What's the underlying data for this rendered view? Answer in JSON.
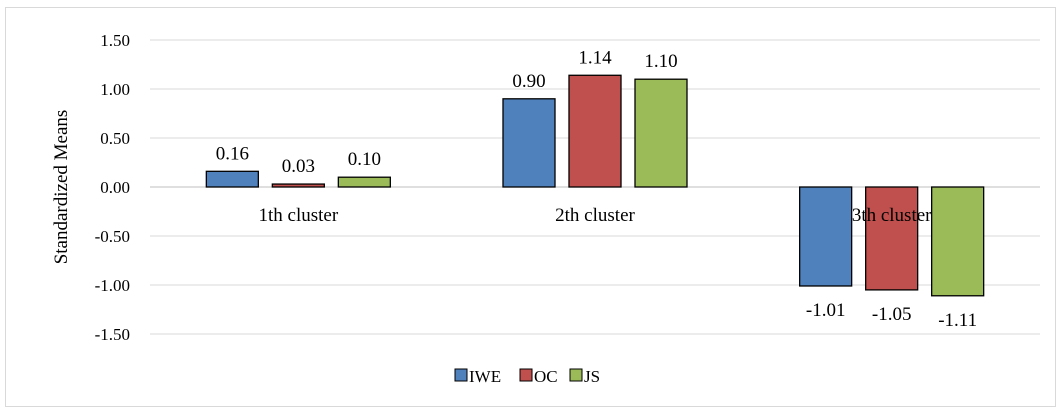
{
  "chart_data": {
    "type": "bar",
    "categories": [
      "1th cluster",
      "2th cluster",
      "3th cluster"
    ],
    "series": [
      {
        "name": "IWE",
        "values": [
          0.16,
          0.9,
          -1.01
        ],
        "color": "#4f81bd"
      },
      {
        "name": "OC",
        "values": [
          0.03,
          1.14,
          -1.05
        ],
        "color": "#c0504d"
      },
      {
        "name": "JS",
        "values": [
          0.1,
          1.1,
          -1.11
        ],
        "color": "#9bbb59"
      }
    ],
    "data_labels": [
      [
        "0.16",
        "0.03",
        "0.10"
      ],
      [
        "0.90",
        "1.14",
        "1.10"
      ],
      [
        "-1.01",
        "-1.05",
        "-1.11"
      ]
    ],
    "yticks": [
      "1.50",
      "1.00",
      "0.50",
      "0.00",
      "-0.50",
      "-1.00",
      "-1.50"
    ],
    "ylim": [
      -1.5,
      1.5
    ],
    "ylabel": "Standardized Means",
    "xlabel": "",
    "title": "",
    "grid": true,
    "legend_position": "bottom"
  }
}
